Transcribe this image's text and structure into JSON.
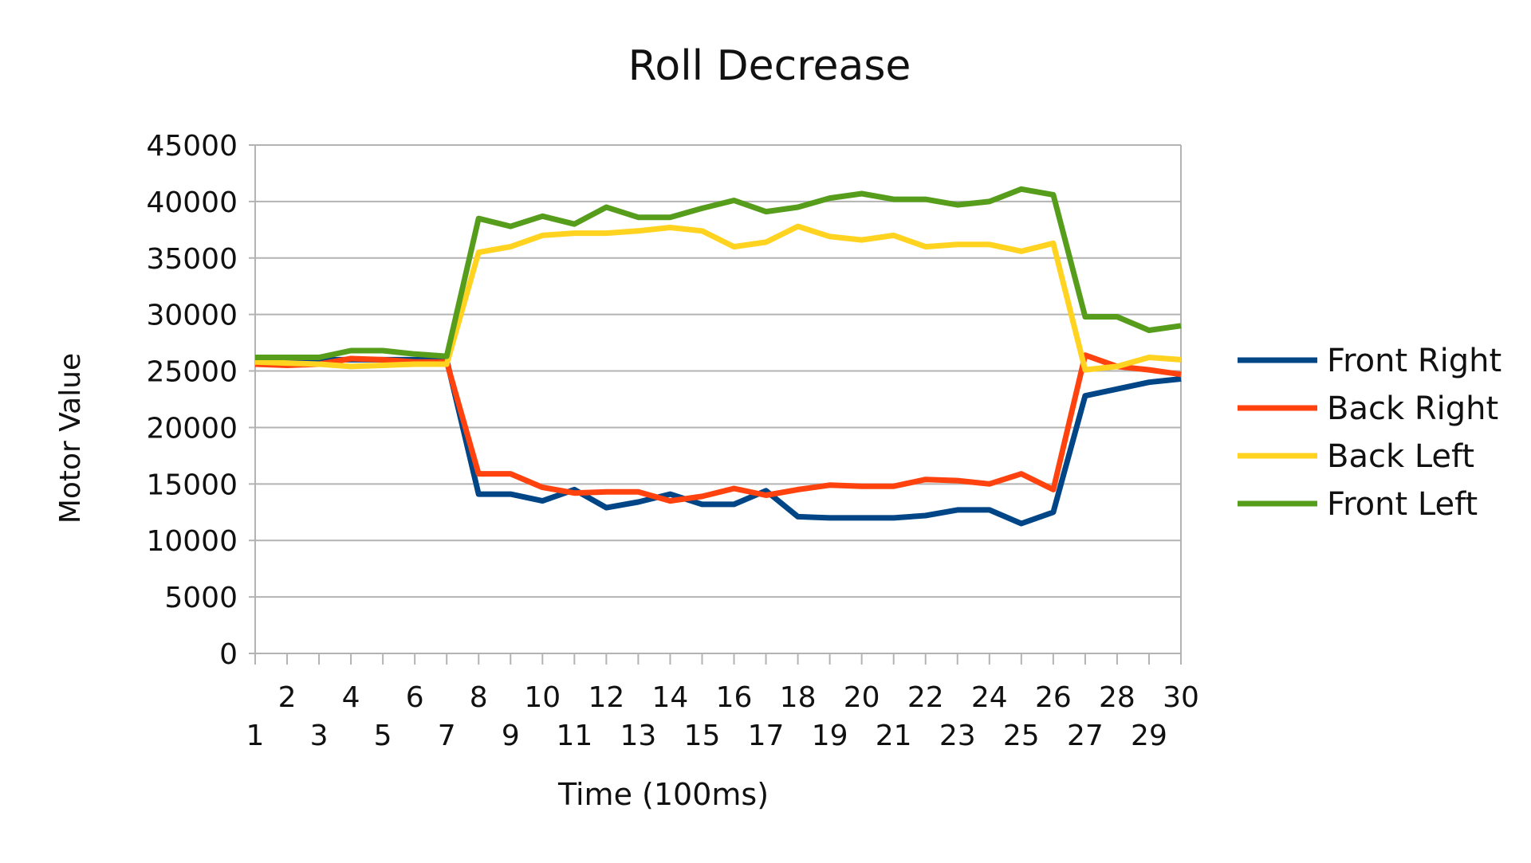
{
  "chart_data": {
    "type": "line",
    "title": "Roll Decrease",
    "xlabel": "Time (100ms)",
    "ylabel": "Motor Value",
    "ylim": [
      0,
      45000
    ],
    "yticks": [
      0,
      5000,
      10000,
      15000,
      20000,
      25000,
      30000,
      35000,
      40000,
      45000
    ],
    "grid": true,
    "legend_position": "right",
    "x": [
      1,
      2,
      3,
      4,
      5,
      6,
      7,
      8,
      9,
      10,
      11,
      12,
      13,
      14,
      15,
      16,
      17,
      18,
      19,
      20,
      21,
      22,
      23,
      24,
      25,
      26,
      27,
      28,
      29,
      30
    ],
    "series": [
      {
        "name": "Front Right",
        "color": "#004586",
        "values": [
          26000,
          26000,
          26000,
          26000,
          26000,
          26000,
          26000,
          14100,
          14100,
          13500,
          14500,
          12900,
          13400,
          14100,
          13200,
          13200,
          14400,
          12100,
          12000,
          12000,
          12000,
          12200,
          12700,
          12700,
          11500,
          12500,
          22800,
          23400,
          24000,
          24300
        ]
      },
      {
        "name": "Back Right",
        "color": "#ff420e",
        "values": [
          25600,
          25500,
          25600,
          26100,
          26000,
          25800,
          25800,
          15900,
          15900,
          14700,
          14200,
          14300,
          14300,
          13500,
          13900,
          14600,
          14000,
          14500,
          14900,
          14800,
          14800,
          15400,
          15300,
          15000,
          15900,
          14500,
          26400,
          25400,
          25100,
          24700
        ]
      },
      {
        "name": "Back Left",
        "color": "#ffd320",
        "values": [
          25800,
          25700,
          25600,
          25400,
          25500,
          25600,
          25600,
          35500,
          36000,
          37000,
          37200,
          37200,
          37400,
          37700,
          37400,
          36000,
          36400,
          37800,
          36900,
          36600,
          37000,
          36000,
          36200,
          36200,
          35600,
          36300,
          25100,
          25400,
          26200,
          26000
        ]
      },
      {
        "name": "Front Left",
        "color": "#579d1c",
        "values": [
          26200,
          26200,
          26200,
          26800,
          26800,
          26500,
          26300,
          38500,
          37800,
          38700,
          38000,
          39500,
          38600,
          38600,
          39400,
          40100,
          39100,
          39500,
          40300,
          40700,
          40200,
          40200,
          39700,
          40000,
          41100,
          40600,
          29800,
          29800,
          28600,
          29000
        ]
      }
    ]
  }
}
